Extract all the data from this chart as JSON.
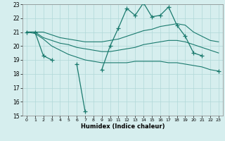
{
  "x": [
    0,
    1,
    2,
    3,
    4,
    5,
    6,
    7,
    8,
    9,
    10,
    11,
    12,
    13,
    14,
    15,
    16,
    17,
    18,
    19,
    20,
    21,
    22,
    23
  ],
  "main_line": [
    21.0,
    21.0,
    19.3,
    19.0,
    null,
    null,
    18.7,
    15.3,
    null,
    18.3,
    20.0,
    21.3,
    22.7,
    22.2,
    23.1,
    22.1,
    22.2,
    22.8,
    21.5,
    20.7,
    19.5,
    19.3,
    null,
    18.2
  ],
  "upper_line": [
    21.0,
    21.0,
    21.0,
    20.8,
    20.6,
    20.5,
    20.4,
    20.3,
    20.3,
    20.3,
    20.4,
    20.5,
    20.7,
    20.9,
    21.1,
    21.2,
    21.4,
    21.5,
    21.6,
    21.5,
    21.0,
    20.7,
    20.4,
    20.3
  ],
  "mid_line": [
    21.0,
    21.0,
    20.6,
    20.4,
    20.2,
    20.1,
    19.9,
    19.8,
    19.7,
    19.6,
    19.6,
    19.7,
    19.8,
    19.9,
    20.1,
    20.2,
    20.3,
    20.4,
    20.4,
    20.3,
    20.1,
    19.9,
    19.7,
    19.5
  ],
  "lower_line": [
    21.0,
    20.9,
    20.5,
    20.0,
    19.7,
    19.4,
    19.2,
    19.0,
    18.9,
    18.8,
    18.8,
    18.8,
    18.8,
    18.9,
    18.9,
    18.9,
    18.9,
    18.8,
    18.8,
    18.7,
    18.6,
    18.5,
    18.3,
    18.2
  ],
  "line_color": "#1a7a6e",
  "bg_color": "#d6eeee",
  "grid_color": "#b0d8d8",
  "xlabel": "Humidex (Indice chaleur)",
  "ylim": [
    15,
    23
  ],
  "xlim": [
    -0.5,
    23.5
  ],
  "yticks": [
    15,
    16,
    17,
    18,
    19,
    20,
    21,
    22,
    23
  ],
  "xticks": [
    0,
    1,
    2,
    3,
    4,
    5,
    6,
    7,
    8,
    9,
    10,
    11,
    12,
    13,
    14,
    15,
    16,
    17,
    18,
    19,
    20,
    21,
    22,
    23
  ]
}
